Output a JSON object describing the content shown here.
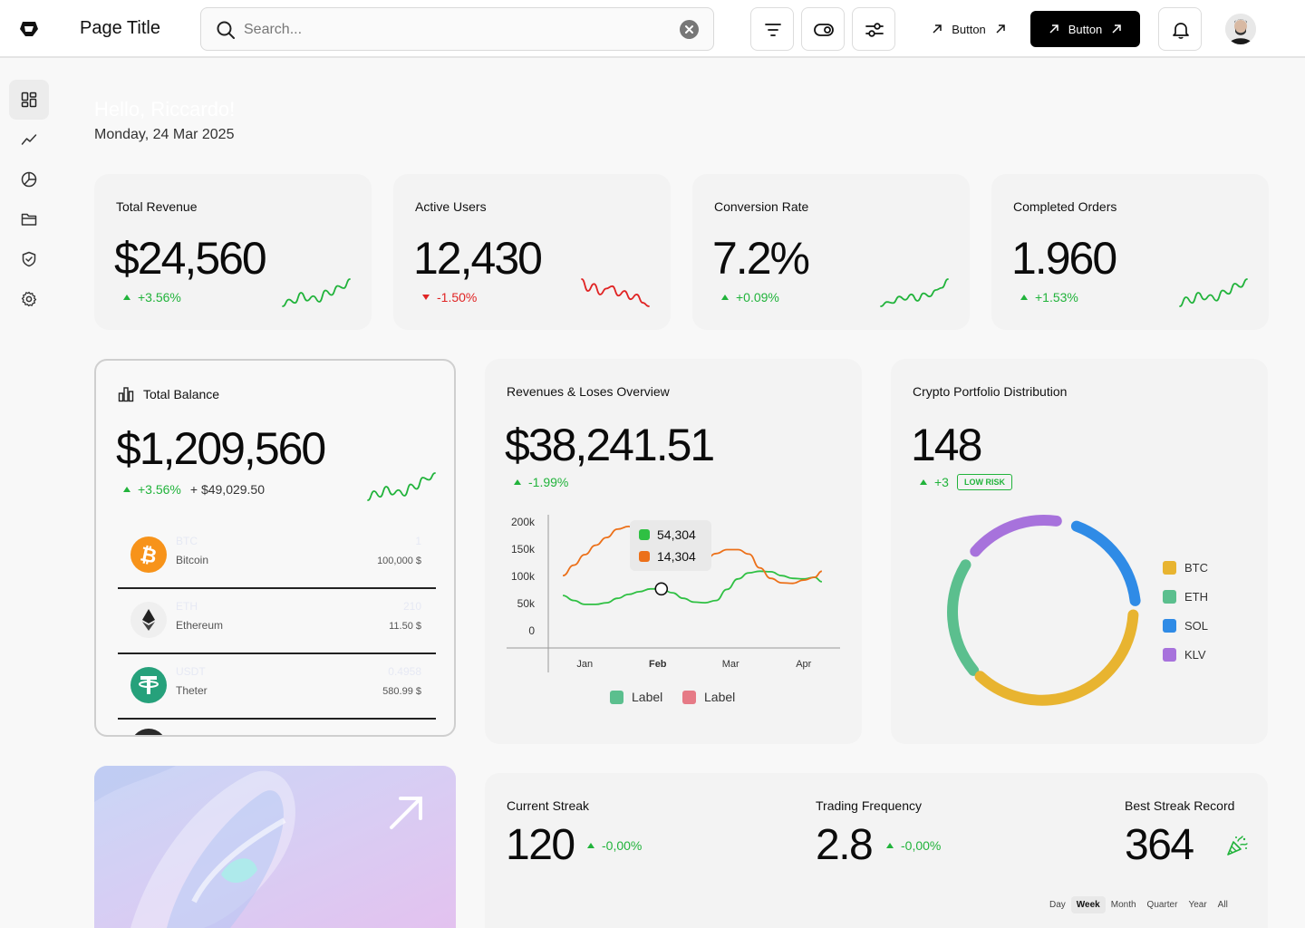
{
  "header": {
    "title": "Page Title",
    "search_placeholder": "Search...",
    "button_ghost": "Button",
    "button_primary": "Button"
  },
  "sidebar": {
    "items": [
      {
        "icon": "dashboard-icon",
        "active": true
      },
      {
        "icon": "trending-icon",
        "active": false
      },
      {
        "icon": "pie-chart-icon",
        "active": false
      },
      {
        "icon": "folder-icon",
        "active": false
      },
      {
        "icon": "shield-check-icon",
        "active": false
      },
      {
        "icon": "gear-icon",
        "active": false
      }
    ]
  },
  "greeting": "Hello, Riccardo!",
  "date": "Monday, 24 Mar 2025",
  "stats": [
    {
      "title": "Total Revenue",
      "value": "$24,560",
      "change": "+3.56%",
      "direction": "up",
      "spark": [
        4,
        10,
        7,
        16,
        9,
        13,
        8,
        18,
        14,
        22,
        20,
        28
      ]
    },
    {
      "title": "Active Users",
      "value": "12,430",
      "change": "-1.50%",
      "direction": "down",
      "spark": [
        26,
        16,
        22,
        13,
        18,
        20,
        12,
        16,
        9,
        13,
        6,
        3
      ]
    },
    {
      "title": "Conversion Rate",
      "value": "7.2%",
      "change": "+0.09%",
      "direction": "up",
      "spark": [
        3,
        7,
        6,
        12,
        9,
        14,
        8,
        15,
        12,
        18,
        20,
        28
      ]
    },
    {
      "title": "Completed Orders",
      "value": "1.960",
      "change": "+1.53%",
      "direction": "up",
      "spark": [
        4,
        12,
        7,
        16,
        10,
        14,
        9,
        18,
        15,
        24,
        21,
        28
      ]
    }
  ],
  "balance": {
    "title": "Total Balance",
    "value": "$1,209,560",
    "change": "+3.56%",
    "delta": "+ $49,029.50",
    "spark": [
      4,
      12,
      7,
      16,
      9,
      13,
      8,
      18,
      14,
      24,
      22,
      28
    ],
    "assets": [
      {
        "symbol": "BTC",
        "name": "Bitcoin",
        "amount": "1",
        "value": "100,000 $",
        "color": "#f7931a"
      },
      {
        "symbol": "ETH",
        "name": "Ethereum",
        "amount": "210",
        "value": "11.50 $",
        "color": "#f0f0f0"
      },
      {
        "symbol": "USDT",
        "name": "Theter",
        "amount": "0.4958",
        "value": "580.99 $",
        "color": "#26a17b"
      }
    ]
  },
  "overview": {
    "title": "Revenues & Loses Overview",
    "value": "$38,241.51",
    "change": "-1.99%",
    "tooltip": {
      "green": "54,304",
      "orange": "14,304"
    },
    "legend": [
      {
        "label": "Label",
        "color": "#5bbf8e"
      },
      {
        "label": "Label",
        "color": "#e67a86"
      }
    ]
  },
  "crypto": {
    "title": "Crypto Portfolio Distribution",
    "value": "148",
    "change": "+3",
    "badge": "LOW RISK",
    "legend": [
      {
        "label": "BTC",
        "color": "#e8b430"
      },
      {
        "label": "ETH",
        "color": "#5bbf8e"
      },
      {
        "label": "SOL",
        "color": "#2f8be6"
      },
      {
        "label": "KLV",
        "color": "#a772dc"
      }
    ]
  },
  "streaks": [
    {
      "label": "Current Streak",
      "value": "120",
      "change": "-0,00%"
    },
    {
      "label": "Trading Frequency",
      "value": "2.8",
      "change": "-0,00%"
    },
    {
      "label": "Best Streak Record",
      "value": "364"
    }
  ],
  "periods": [
    "Day",
    "Week",
    "Month",
    "Quarter",
    "Year",
    "All"
  ],
  "active_period": "Week",
  "chart_data": {
    "type": "line",
    "categories": [
      "Jan",
      "Feb",
      "Mar",
      "Apr"
    ],
    "y_ticks": [
      "200k",
      "150k",
      "100k",
      "50k",
      "0"
    ],
    "ylim": [
      0,
      200000
    ],
    "x": [
      0.7,
      0.85,
      1.0,
      1.15,
      1.3,
      1.45,
      1.6,
      1.75,
      1.9,
      2.05,
      2.2,
      2.35,
      2.5,
      2.65,
      2.8,
      2.95,
      3.1,
      3.25,
      3.4,
      3.55,
      3.7,
      3.85,
      4.0,
      4.15,
      4.25
    ],
    "series": [
      {
        "color": "#2fc043",
        "values": [
          67000,
          58000,
          51000,
          51000,
          54000,
          62000,
          69000,
          74000,
          79000,
          79000,
          72000,
          62000,
          55000,
          54000,
          58000,
          78000,
          97000,
          108000,
          111000,
          110000,
          103000,
          98000,
          97000,
          100000,
          92000
        ]
      },
      {
        "color": "#ec7019",
        "values": [
          103000,
          122000,
          141000,
          158000,
          172000,
          187000,
          192000,
          180000,
          151000,
          124000,
          117000,
          118000,
          122000,
          131000,
          143000,
          150000,
          150000,
          142000,
          117000,
          98000,
          90000,
          89000,
          95000,
          100000,
          111000
        ]
      }
    ],
    "highlight": {
      "x": 2.05,
      "y": 79000
    }
  }
}
